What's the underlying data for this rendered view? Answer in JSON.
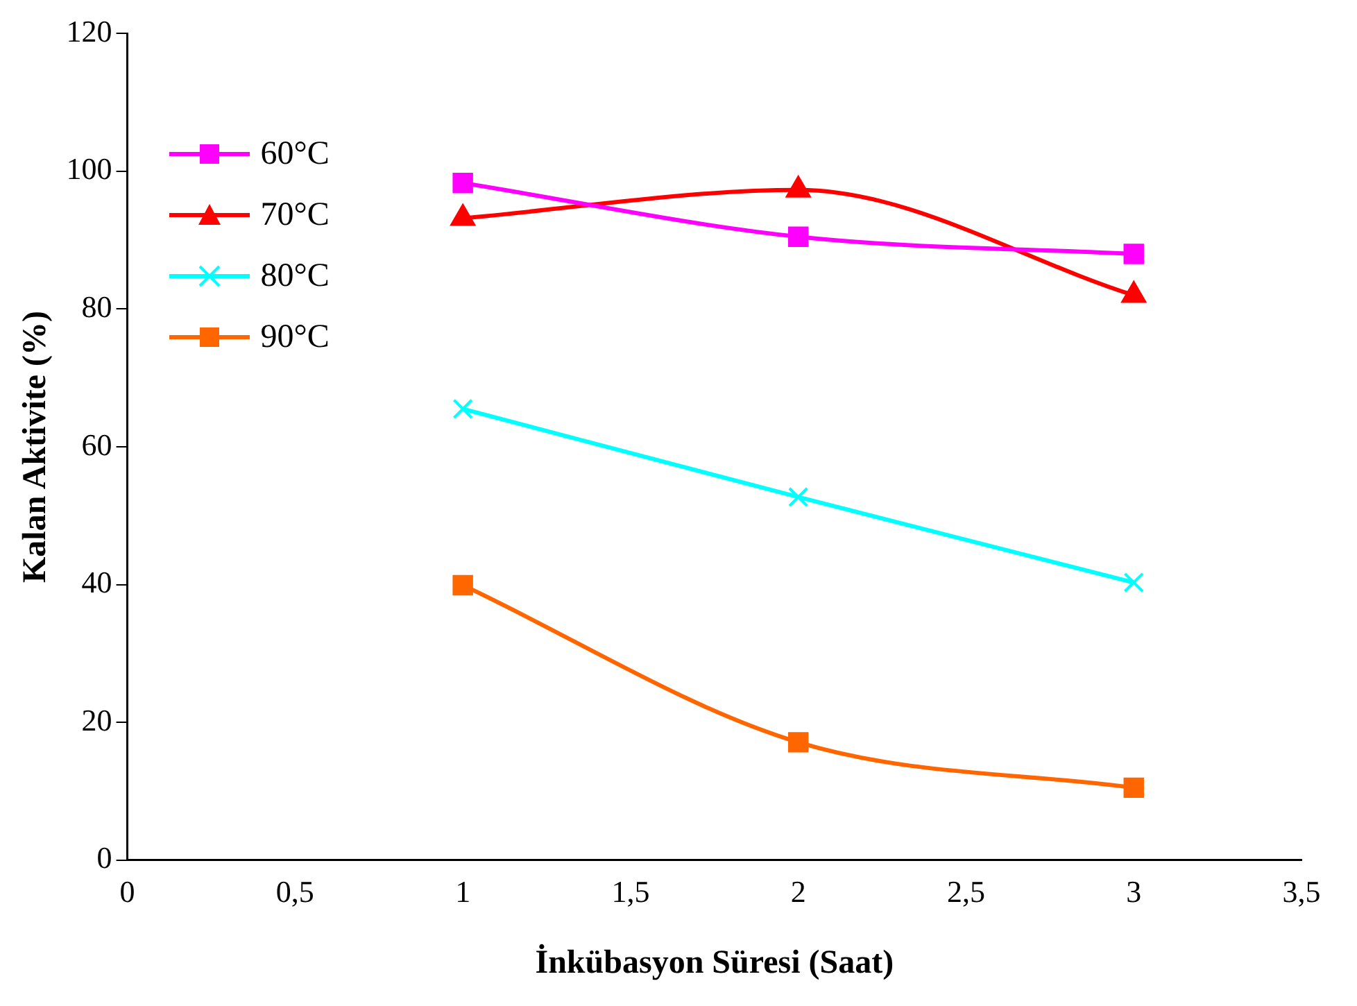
{
  "chart_data": {
    "type": "line",
    "xlabel": "İnkübasyon Süresi (Saat)",
    "ylabel": "Kalan Aktivite (%)",
    "xlim": [
      0,
      3.5
    ],
    "xticks": [
      0,
      {
        "value": 0.5,
        "label": "0,5"
      },
      1,
      {
        "value": 1.5,
        "label": "1,5"
      },
      2,
      {
        "value": 2.5,
        "label": "2,5"
      },
      3,
      {
        "value": 3.5,
        "label": "3,5"
      }
    ],
    "ylim": [
      0,
      120
    ],
    "yticks": [
      0,
      20,
      40,
      60,
      80,
      100,
      120
    ],
    "grid": false,
    "legend": "top left",
    "series": [
      {
        "name": "60°C",
        "color": "#ff00ff",
        "marker": "square",
        "x": [
          1,
          2,
          3
        ],
        "values": [
          98.3,
          90.5,
          88
        ]
      },
      {
        "name": "70°C",
        "color": "#ff0000",
        "marker": "triangle",
        "x": [
          1,
          2,
          3
        ],
        "values": [
          93.2,
          97.3,
          82
        ]
      },
      {
        "name": "80°C",
        "color": "#00ffff",
        "marker": "cross",
        "x": [
          1,
          2,
          3
        ],
        "values": [
          65.5,
          52.7,
          40.3
        ]
      },
      {
        "name": "90°C",
        "color": "#ff6600",
        "marker": "square",
        "x": [
          1,
          2,
          3
        ],
        "values": [
          39.9,
          17.1,
          10.5
        ]
      }
    ]
  }
}
